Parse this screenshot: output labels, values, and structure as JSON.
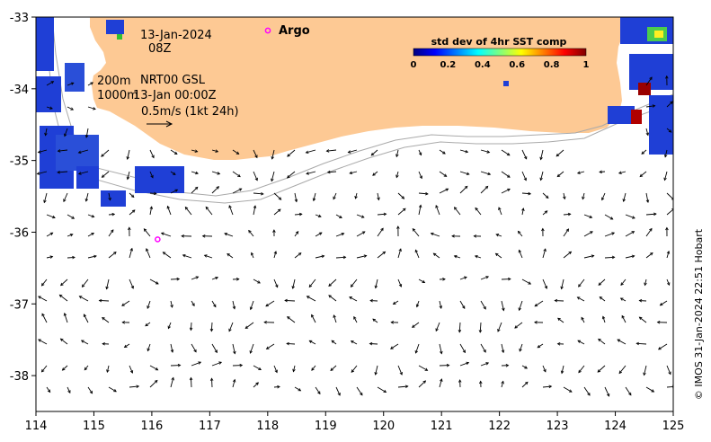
{
  "annotations": {
    "date": "13-Jan-2024",
    "time": "08Z",
    "depth_200": "200m",
    "depth_1000": "1000m",
    "product": "NRT00 GSL",
    "product_time": "13-Jan 00:00Z",
    "scale_label": "0.5m/s (1kt 24h)",
    "argo_legend": "Argo"
  },
  "colorbar": {
    "title": "std dev of 4hr SST comp",
    "ticks": [
      "0",
      "0.2",
      "0.4",
      "0.6",
      "0.8",
      "1"
    ],
    "colors": [
      "#00007f",
      "#0000ff",
      "#007fff",
      "#00ffff",
      "#7fff7f",
      "#ffff00",
      "#ff7f00",
      "#ff0000",
      "#7f0000"
    ]
  },
  "credit": "© IMOS 31-Jan-2024 22:51 Hobart",
  "colors": {
    "land": "#fdc994",
    "argo": "#ff00ff",
    "sst_blue": "#1f3fd6"
  },
  "chart_data": {
    "type": "map",
    "xaxis": {
      "label": "",
      "range": [
        114,
        125
      ],
      "ticks": [
        114,
        115,
        116,
        117,
        118,
        119,
        120,
        121,
        122,
        123,
        124,
        125
      ]
    },
    "yaxis": {
      "label": "",
      "range": [
        -38.5,
        -33
      ],
      "ticks": [
        -33,
        -34,
        -35,
        -36,
        -37,
        -38
      ]
    },
    "argo_floats": [
      {
        "lon": 117.9,
        "lat": -33.2
      },
      {
        "lon": 116.1,
        "lat": -36.1
      }
    ],
    "current_scale": {
      "speed_ms": 0.5,
      "lon": 116.3,
      "lat": -34.75
    }
  }
}
